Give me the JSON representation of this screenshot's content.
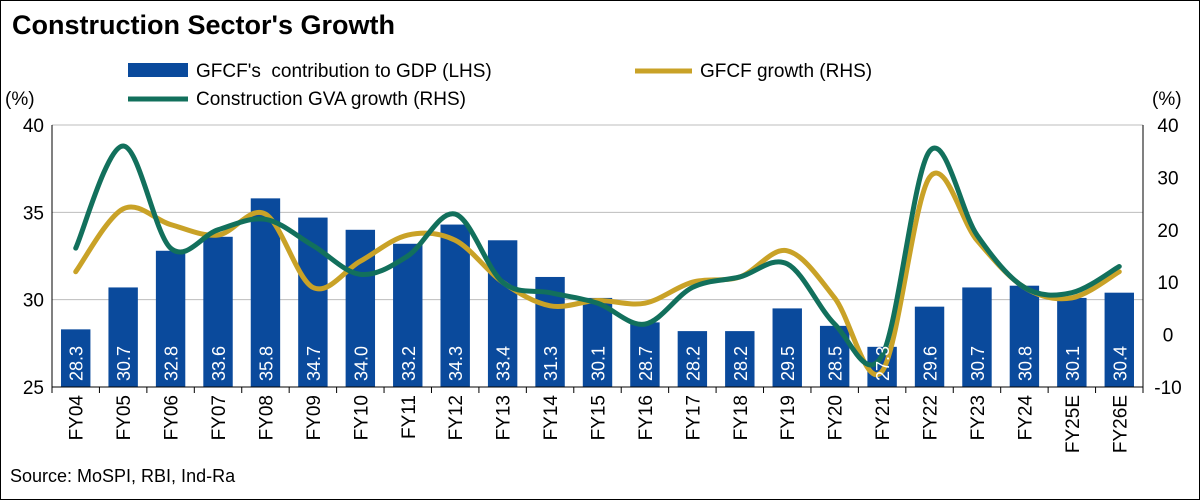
{
  "chart_data": {
    "type": "bar+line",
    "title": "Construction Sector's Growth",
    "source": "Source: MoSPI, RBI, Ind-Ra",
    "left_axis": {
      "unit": "(%)",
      "range": [
        25,
        40
      ],
      "ticks": [
        "25",
        "30",
        "35",
        "40"
      ]
    },
    "right_axis": {
      "unit": "(%)",
      "range": [
        -10,
        40
      ],
      "ticks": [
        "-10",
        "0",
        "10",
        "20",
        "30",
        "40"
      ]
    },
    "categories": [
      "FY04",
      "FY05",
      "FY06",
      "FY07",
      "FY08",
      "FY09",
      "FY10",
      "FY11",
      "FY12",
      "FY13",
      "FY14",
      "FY15",
      "FY16",
      "FY17",
      "FY18",
      "FY19",
      "FY20",
      "FY21",
      "FY22",
      "FY23",
      "FY24",
      "FY25E",
      "FY26E"
    ],
    "grid": "horizontal",
    "legend_placement": "top",
    "series": [
      {
        "name": "GFCF's  contribution to GDP (LHS)",
        "kind": "bar",
        "axis": "left",
        "color": "#0a4a9c",
        "values": [
          28.3,
          30.7,
          32.8,
          33.6,
          35.8,
          34.7,
          34.0,
          33.2,
          34.3,
          33.4,
          31.3,
          30.1,
          28.7,
          28.2,
          28.2,
          29.5,
          28.5,
          27.3,
          29.6,
          30.7,
          30.8,
          30.1,
          30.4
        ],
        "labels": [
          "28.3",
          "30.7",
          "32.8",
          "33.6",
          "35.8",
          "34.7",
          "34.0",
          "33.2",
          "34.3",
          "33.4",
          "31.3",
          "30.1",
          "28.7",
          "28.2",
          "28.2",
          "29.5",
          "28.5",
          "27.3",
          "29.6",
          "30.7",
          "30.8",
          "30.1",
          "30.4"
        ]
      },
      {
        "name": "GFCF growth (RHS)",
        "kind": "line",
        "axis": "right",
        "color": "#c9a227",
        "values": [
          12,
          24,
          21,
          19,
          23,
          9,
          14,
          19,
          18,
          10,
          5.5,
          6.5,
          6,
          10,
          11,
          16,
          7,
          -7,
          30,
          18,
          9,
          7,
          12
        ]
      },
      {
        "name": "Construction GVA growth (RHS)",
        "kind": "line",
        "axis": "right",
        "color": "#12705c",
        "values": [
          16.5,
          36,
          16.5,
          20,
          22,
          17,
          11.5,
          15,
          23,
          10,
          8,
          6,
          2,
          9,
          11,
          13.5,
          2,
          -4,
          35,
          19,
          9,
          8,
          13
        ]
      }
    ]
  }
}
